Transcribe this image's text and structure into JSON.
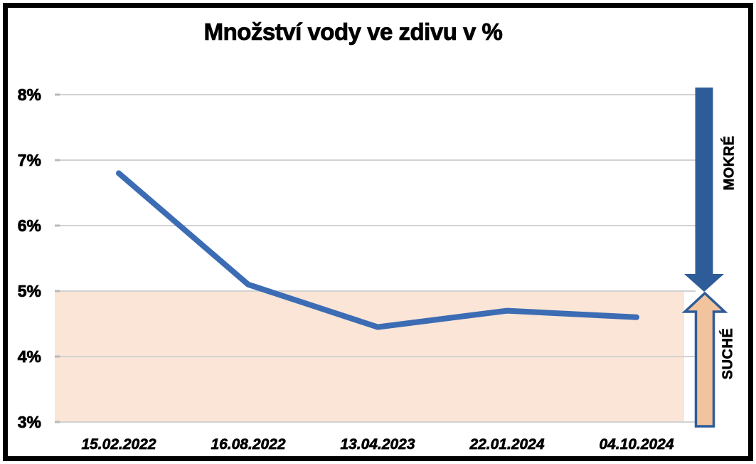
{
  "chart_data": {
    "type": "line",
    "title": "Množství vody ve zdivu v %",
    "categories": [
      "15.02.2022",
      "16.08.2022",
      "13.04.2023",
      "22.01.2024",
      "04.10.2024"
    ],
    "values": [
      6.8,
      5.1,
      4.45,
      4.7,
      4.6
    ],
    "xlabel": "",
    "ylabel": "",
    "ylim": [
      3,
      8
    ],
    "yticks": [
      {
        "label": "8%",
        "value": 8
      },
      {
        "label": "7%",
        "value": 7
      },
      {
        "label": "6%",
        "value": 6
      },
      {
        "label": "5%",
        "value": 5
      },
      {
        "label": "4%",
        "value": 4
      },
      {
        "label": "3%",
        "value": 3
      }
    ],
    "grid": true,
    "legend": false,
    "dry_band": {
      "from": 3,
      "to": 5
    },
    "annotations": {
      "wet": {
        "label": "MOKRÉ",
        "direction": "down",
        "range": "above 5%"
      },
      "dry": {
        "label": "SUCHÉ",
        "direction": "up",
        "range": "3% to 5%"
      }
    },
    "colors": {
      "line": "#3C6CB4",
      "wet_arrow": "#2E5C99",
      "dry_arrow_fill": "#F2C49E",
      "dry_arrow_border": "#2E5C99",
      "band": "#FBE5D6",
      "gridline": "#D2D2D2",
      "tick_cap": "#B9B9B9",
      "frame": "#000000",
      "text": "#000000"
    }
  }
}
